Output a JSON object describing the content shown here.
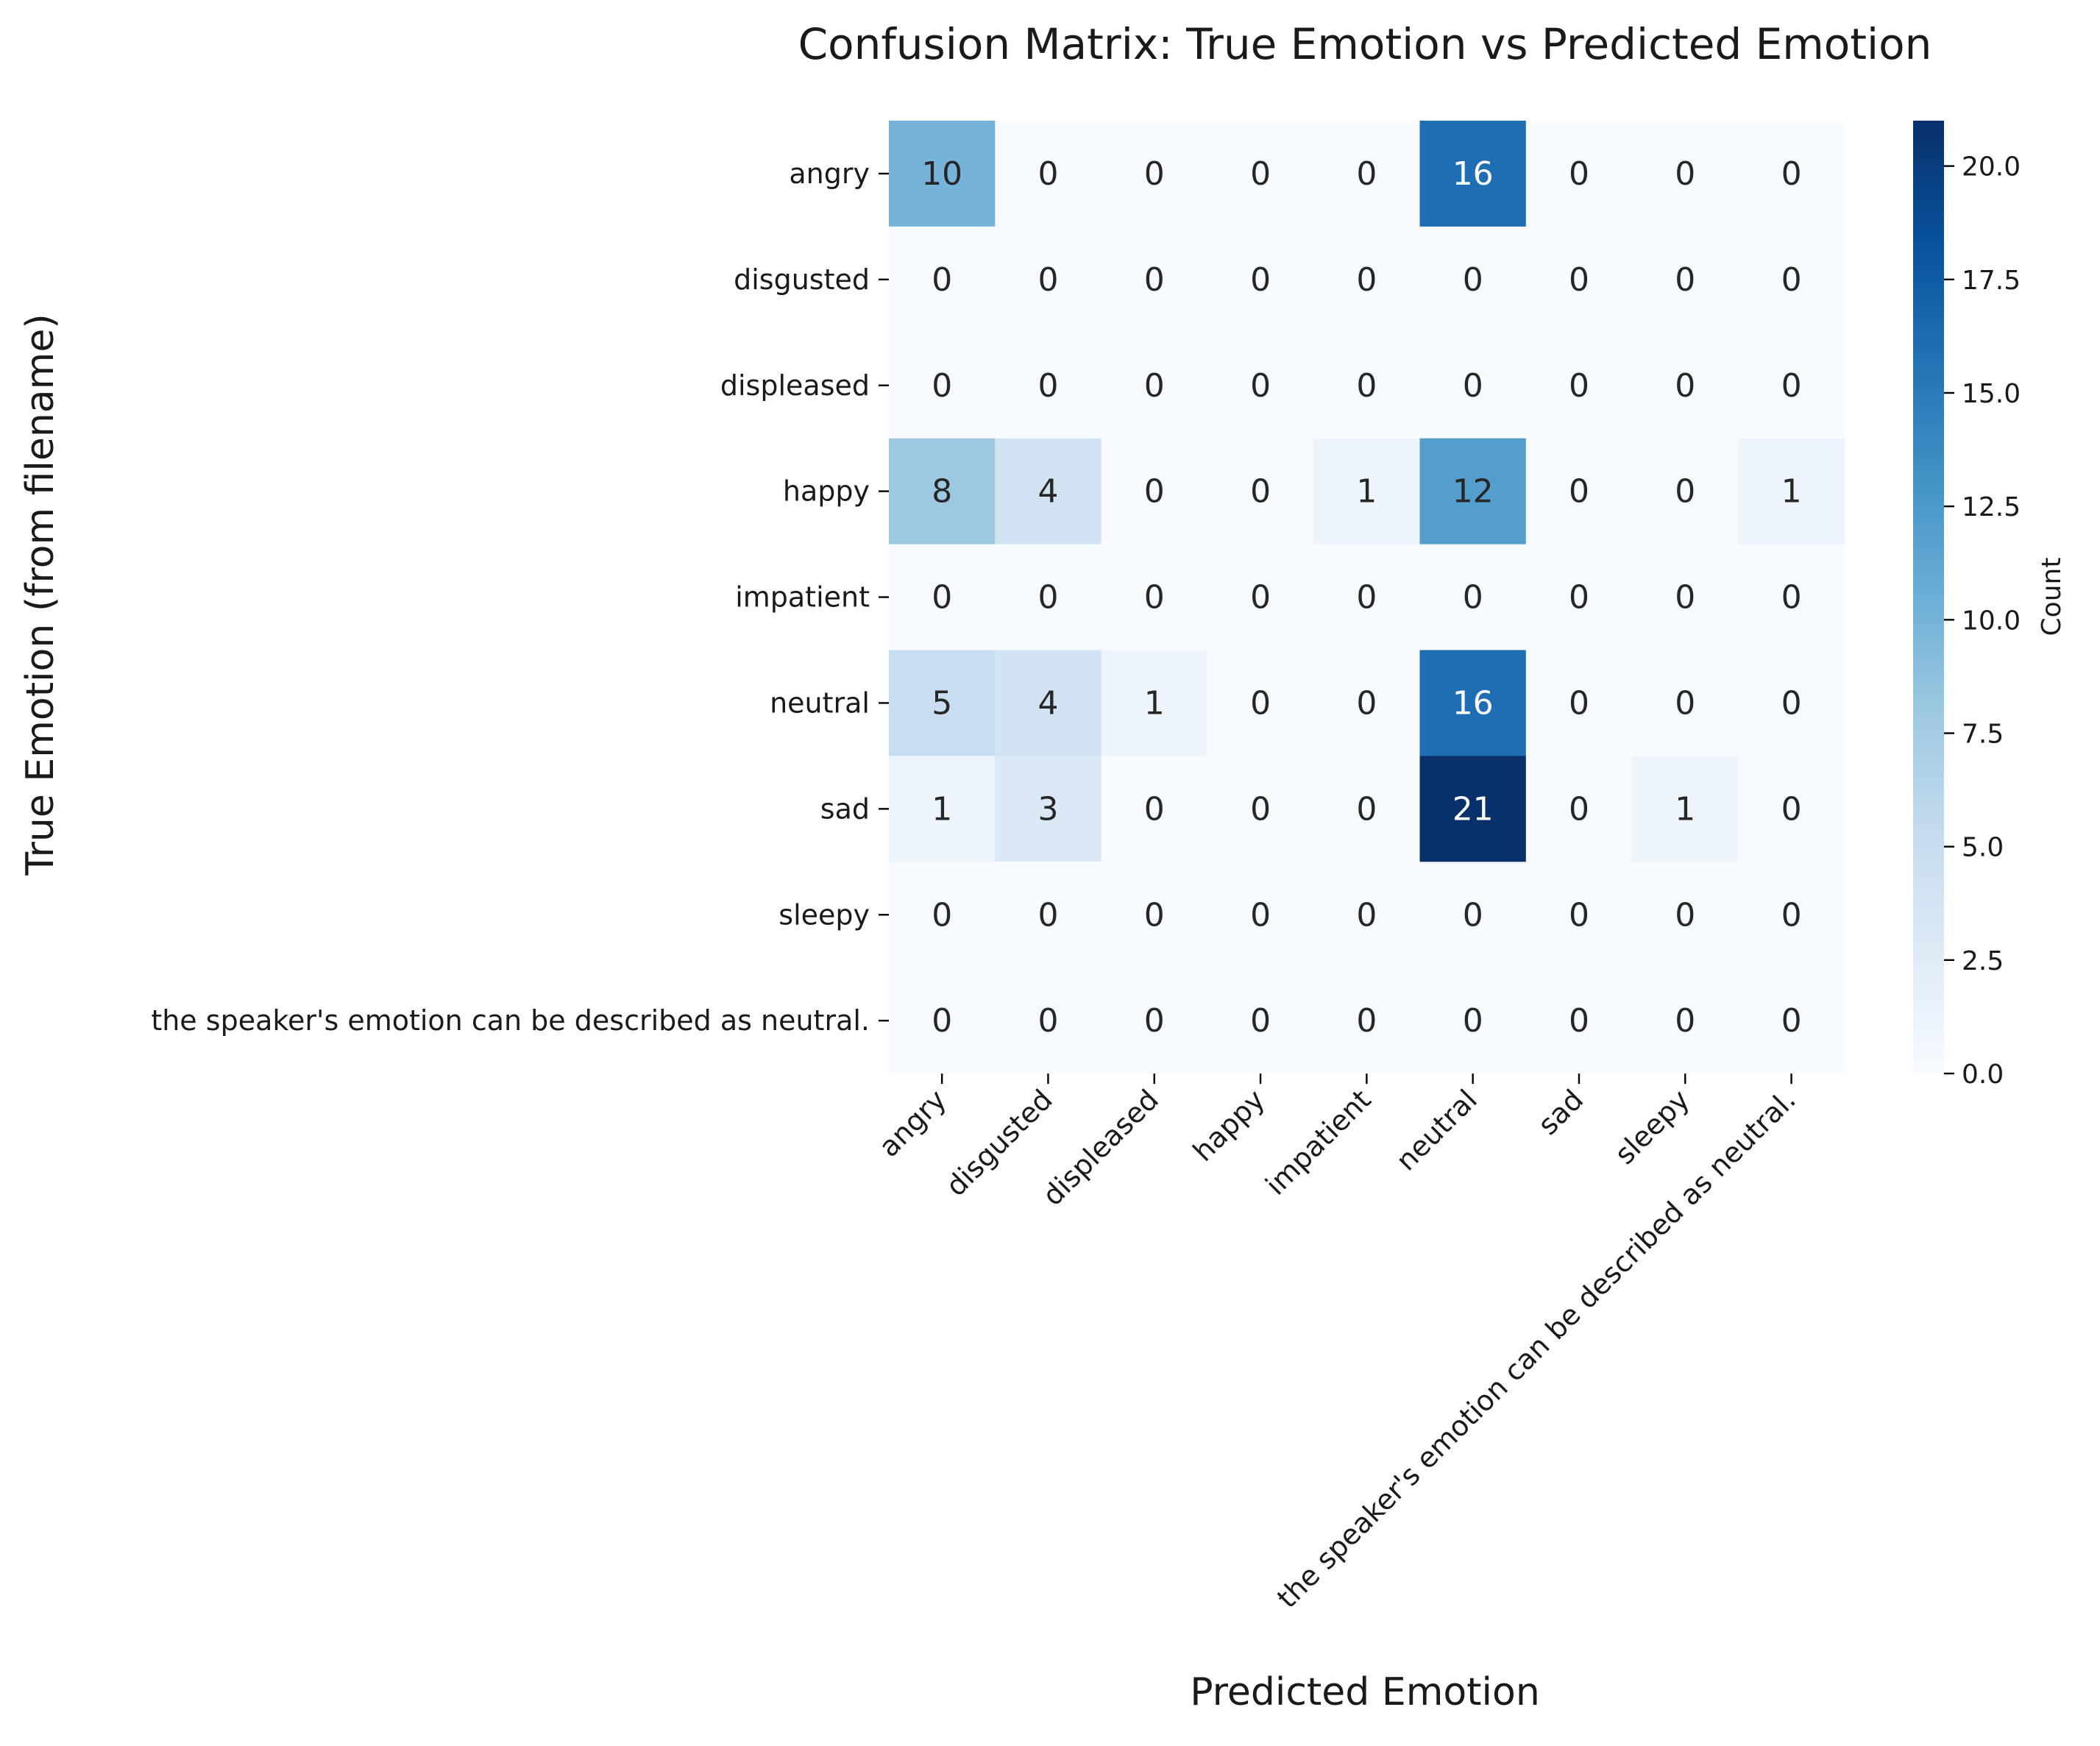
{
  "chart_data": {
    "type": "heatmap",
    "title": "Confusion Matrix: True Emotion vs Predicted Emotion",
    "xlabel": "Predicted Emotion",
    "ylabel": "True Emotion (from filename)",
    "row_labels": [
      "angry",
      "disgusted",
      "displeased",
      "happy",
      "impatient",
      "neutral",
      "sad",
      "sleepy",
      "the speaker's emotion can be described as neutral."
    ],
    "col_labels": [
      "angry",
      "disgusted",
      "displeased",
      "happy",
      "impatient",
      "neutral",
      "sad",
      "sleepy",
      "the speaker's emotion can be described as neutral."
    ],
    "values": [
      [
        10,
        0,
        0,
        0,
        0,
        16,
        0,
        0,
        0
      ],
      [
        0,
        0,
        0,
        0,
        0,
        0,
        0,
        0,
        0
      ],
      [
        0,
        0,
        0,
        0,
        0,
        0,
        0,
        0,
        0
      ],
      [
        8,
        4,
        0,
        0,
        1,
        12,
        0,
        0,
        1
      ],
      [
        0,
        0,
        0,
        0,
        0,
        0,
        0,
        0,
        0
      ],
      [
        5,
        4,
        1,
        0,
        0,
        16,
        0,
        0,
        0
      ],
      [
        1,
        3,
        0,
        0,
        0,
        21,
        0,
        1,
        0
      ],
      [
        0,
        0,
        0,
        0,
        0,
        0,
        0,
        0,
        0
      ],
      [
        0,
        0,
        0,
        0,
        0,
        0,
        0,
        0,
        0
      ]
    ],
    "colormap": "Blues",
    "vmin": 0,
    "vmax": 21,
    "colorbar": {
      "label": "Count",
      "ticks": [
        "0.0",
        "2.5",
        "5.0",
        "7.5",
        "10.0",
        "12.5",
        "15.0",
        "17.5",
        "20.0"
      ],
      "tick_values": [
        0,
        2.5,
        5,
        7.5,
        10,
        12.5,
        15,
        17.5,
        20
      ]
    },
    "grid": false
  }
}
